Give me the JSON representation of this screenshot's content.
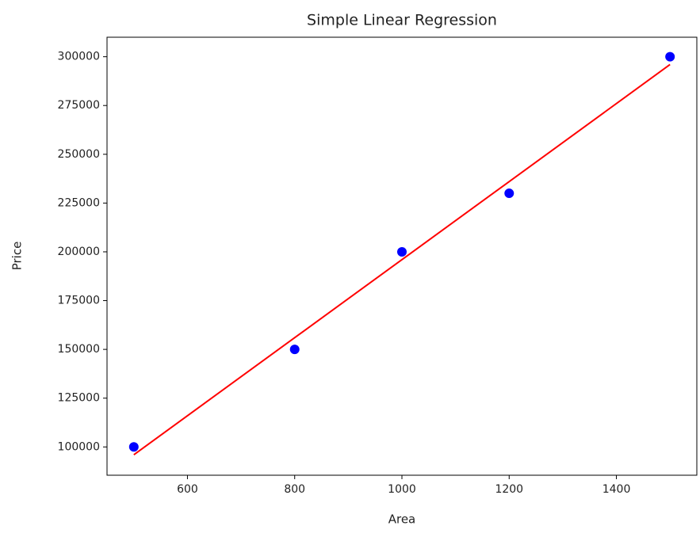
{
  "chart_data": {
    "type": "scatter",
    "title": "Simple Linear Regression",
    "xlabel": "Area",
    "ylabel": "Price",
    "x": [
      500,
      800,
      1000,
      1200,
      1500
    ],
    "series": [
      {
        "type": "scatter",
        "color": "#0000ff",
        "values": [
          100000,
          150000,
          200000,
          230000,
          300000
        ]
      },
      {
        "type": "line",
        "color": "#ff0000",
        "values": [
          96000,
          156000,
          196000,
          236000,
          296000
        ]
      }
    ],
    "xlim": [
      450,
      1550
    ],
    "ylim": [
      85500,
      310000
    ],
    "xticks": [
      600,
      800,
      1000,
      1200,
      1400
    ],
    "yticks": [
      100000,
      125000,
      150000,
      175000,
      200000,
      225000,
      250000,
      275000,
      300000
    ],
    "grid": false
  }
}
